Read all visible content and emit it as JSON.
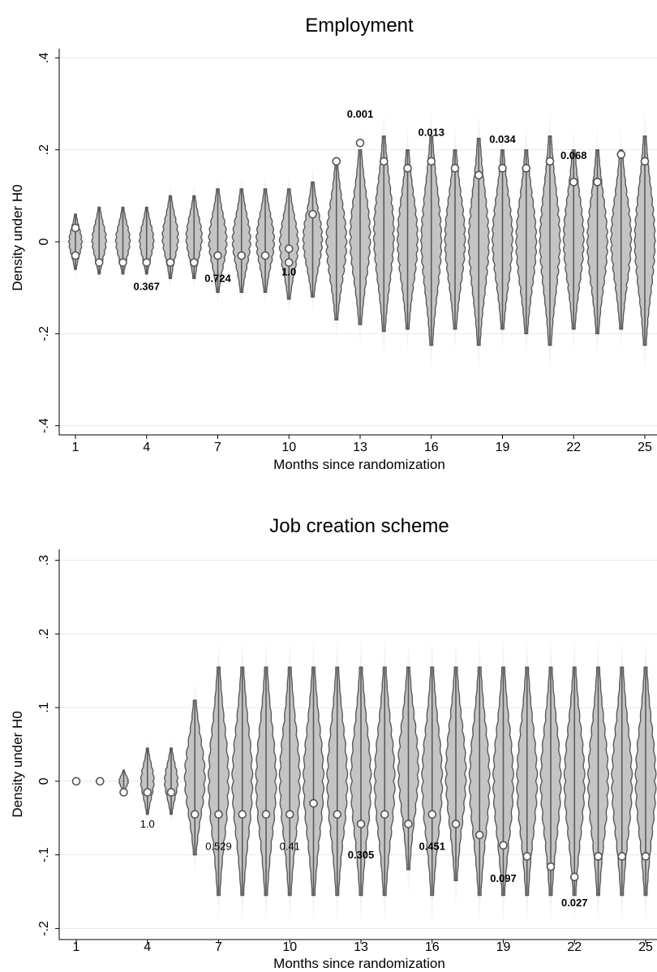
{
  "chart_data": [
    {
      "type": "violin",
      "title": "Employment",
      "xlabel": "Months since randomization",
      "ylabel": "Density under H0",
      "xticks": [
        1,
        4,
        7,
        10,
        13,
        16,
        19,
        22,
        25
      ],
      "xtick_labels": [
        "1",
        "4",
        "7",
        "10",
        "13",
        "16",
        "19",
        "22",
        "25"
      ],
      "yticks": [
        -0.4,
        -0.2,
        0,
        0.2,
        0.4
      ],
      "ytick_labels": [
        "-.4",
        "-.2",
        "0",
        ".2",
        ".4"
      ],
      "ylim": [
        -0.42,
        0.42
      ],
      "grid": true,
      "colors": {
        "violin_fill": "#c4c4c4",
        "violin_line": "#5a5a5a",
        "outer_haze": "#f1f1f1",
        "grid": "#e8e8e8"
      },
      "months": [
        1,
        2,
        3,
        4,
        5,
        6,
        7,
        8,
        9,
        10,
        11,
        12,
        13,
        14,
        15,
        16,
        17,
        18,
        19,
        20,
        21,
        22,
        23,
        24,
        25
      ],
      "violin_min": [
        -0.06,
        -0.07,
        -0.07,
        -0.07,
        -0.08,
        -0.08,
        -0.11,
        -0.11,
        -0.11,
        -0.125,
        -0.12,
        -0.17,
        -0.18,
        -0.195,
        -0.19,
        -0.225,
        -0.19,
        -0.225,
        -0.19,
        -0.2,
        -0.225,
        -0.19,
        -0.2,
        -0.19,
        -0.225
      ],
      "violin_max": [
        0.06,
        0.075,
        0.075,
        0.075,
        0.1,
        0.1,
        0.115,
        0.115,
        0.115,
        0.115,
        0.13,
        0.17,
        0.2,
        0.23,
        0.2,
        0.23,
        0.2,
        0.225,
        0.2,
        0.2,
        0.23,
        0.2,
        0.2,
        0.2,
        0.23
      ],
      "observed": [
        [
          -0.03,
          0.03
        ],
        [
          -0.045
        ],
        [
          -0.045
        ],
        [
          -0.045
        ],
        [
          -0.045
        ],
        [
          -0.045
        ],
        [
          -0.03
        ],
        [
          -0.03
        ],
        [
          -0.03
        ],
        [
          -0.015,
          -0.045
        ],
        [
          0.06
        ],
        [
          0.175
        ],
        [
          0.215
        ],
        [
          0.175
        ],
        [
          0.16
        ],
        [
          0.175
        ],
        [
          0.16
        ],
        [
          0.145
        ],
        [
          0.16
        ],
        [
          0.16
        ],
        [
          0.175
        ],
        [
          0.13
        ],
        [
          0.13
        ],
        [
          0.19
        ],
        [
          0.175
        ]
      ],
      "pvalue_labels": [
        {
          "text": "0.367",
          "month": 4,
          "y": -0.105
        },
        {
          "text": "0.724",
          "month": 7,
          "y": -0.087
        },
        {
          "text": "1.0",
          "month": 10,
          "y": -0.073
        },
        {
          "text": "0.001",
          "month": 13,
          "y": 0.27
        },
        {
          "text": "0.013",
          "month": 16,
          "y": 0.23
        },
        {
          "text": "0.034",
          "month": 19,
          "y": 0.215
        },
        {
          "text": "0.068",
          "month": 22,
          "y": 0.18
        }
      ]
    },
    {
      "type": "violin",
      "title": "Job creation scheme",
      "xlabel": "Months since randomization",
      "ylabel": "Density under H0",
      "xticks": [
        1,
        4,
        7,
        10,
        13,
        16,
        19,
        22,
        25
      ],
      "xtick_labels": [
        "1",
        "4",
        "7",
        "10",
        "13",
        "16",
        "19",
        "22",
        "25"
      ],
      "yticks": [
        -0.2,
        -0.1,
        0,
        0.1,
        0.2,
        0.3
      ],
      "ytick_labels": [
        "-.2",
        "-.1",
        "0",
        ".1",
        ".2",
        ".3"
      ],
      "ylim": [
        -0.215,
        0.315
      ],
      "grid": true,
      "colors": {
        "violin_fill": "#c4c4c4",
        "violin_line": "#5a5a5a",
        "outer_haze": "#f1f1f1",
        "grid": "#e8e8e8"
      },
      "months": [
        1,
        2,
        3,
        4,
        5,
        6,
        7,
        8,
        9,
        10,
        11,
        12,
        13,
        14,
        15,
        16,
        17,
        18,
        19,
        20,
        21,
        22,
        23,
        24,
        25
      ],
      "violin_min": [
        0,
        0,
        -0.015,
        -0.045,
        -0.045,
        -0.1,
        -0.155,
        -0.155,
        -0.155,
        -0.155,
        -0.155,
        -0.155,
        -0.155,
        -0.155,
        -0.12,
        -0.155,
        -0.135,
        -0.155,
        -0.155,
        -0.155,
        -0.155,
        -0.155,
        -0.155,
        -0.155,
        -0.155
      ],
      "violin_max": [
        0,
        0,
        0.015,
        0.045,
        0.045,
        0.11,
        0.155,
        0.155,
        0.155,
        0.155,
        0.155,
        0.155,
        0.155,
        0.155,
        0.155,
        0.155,
        0.155,
        0.155,
        0.155,
        0.155,
        0.155,
        0.155,
        0.155,
        0.155,
        0.155
      ],
      "observed": [
        [
          0
        ],
        [
          0
        ],
        [
          -0.015
        ],
        [
          -0.015
        ],
        [
          -0.015
        ],
        [
          -0.045
        ],
        [
          -0.045
        ],
        [
          -0.045
        ],
        [
          -0.045
        ],
        [
          -0.045
        ],
        [
          -0.03
        ],
        [
          -0.045
        ],
        [
          -0.058
        ],
        [
          -0.045
        ],
        [
          -0.058
        ],
        [
          -0.045
        ],
        [
          -0.058
        ],
        [
          -0.073
        ],
        [
          -0.087
        ],
        [
          -0.102
        ],
        [
          -0.116
        ],
        [
          -0.13
        ],
        [
          -0.102
        ],
        [
          -0.102
        ],
        [
          -0.102
        ]
      ],
      "pvalue_labels": [
        {
          "text": "1.0",
          "month": 4,
          "y": -0.063,
          "bold": false
        },
        {
          "text": "0.529",
          "month": 7,
          "y": -0.093,
          "bold": false
        },
        {
          "text": "0.41",
          "month": 10,
          "y": -0.093,
          "bold": false
        },
        {
          "text": "0.305",
          "month": 13,
          "y": -0.105,
          "bold": true
        },
        {
          "text": "0.451",
          "month": 16,
          "y": -0.093,
          "bold": true
        },
        {
          "text": "0.097",
          "month": 19,
          "y": -0.137,
          "bold": true
        },
        {
          "text": "0.027",
          "month": 22,
          "y": -0.17,
          "bold": true
        }
      ]
    }
  ]
}
